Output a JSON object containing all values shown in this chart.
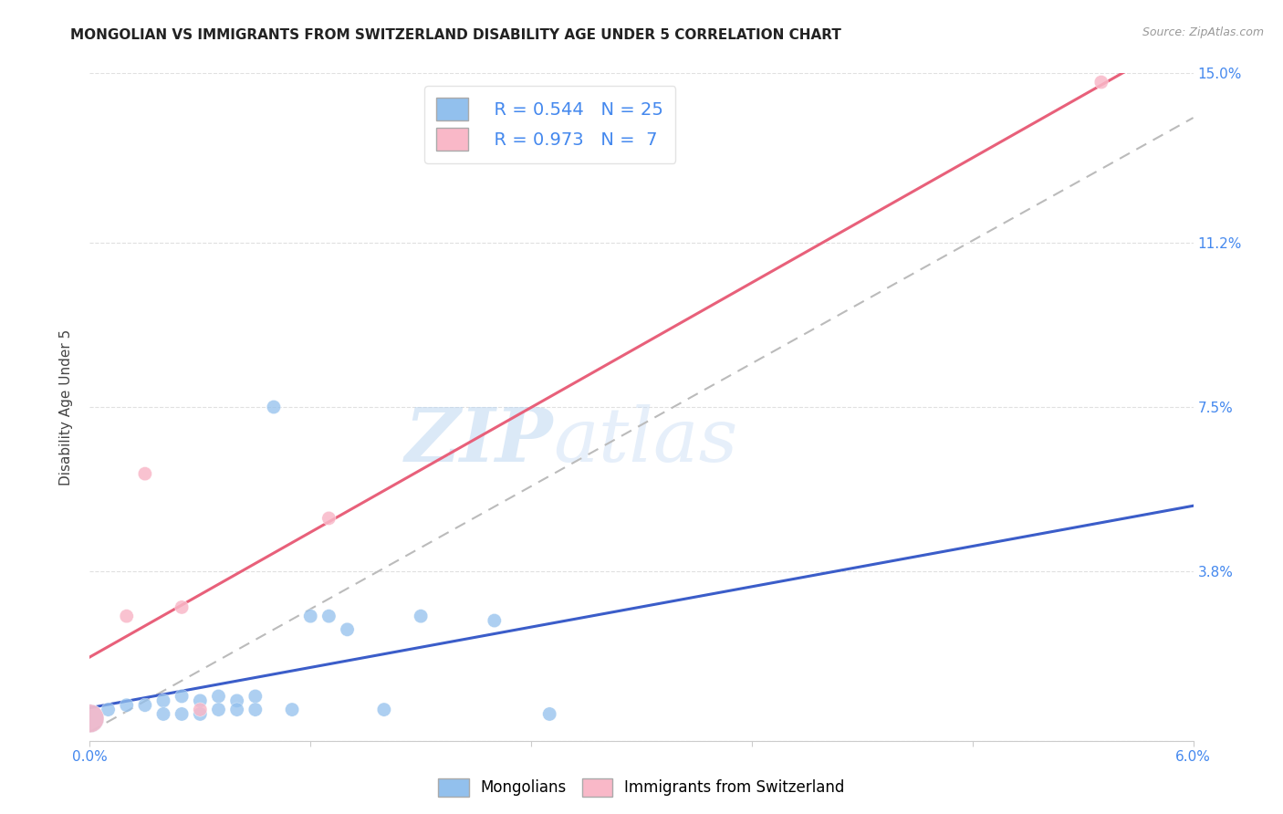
{
  "title": "MONGOLIAN VS IMMIGRANTS FROM SWITZERLAND DISABILITY AGE UNDER 5 CORRELATION CHART",
  "source": "Source: ZipAtlas.com",
  "ylabel": "Disability Age Under 5",
  "xlabel": "",
  "xlim": [
    0.0,
    0.06
  ],
  "ylim": [
    0.0,
    0.15
  ],
  "xticks": [
    0.0,
    0.012,
    0.024,
    0.036,
    0.048,
    0.06
  ],
  "xtick_labels": [
    "0.0%",
    "",
    "",
    "",
    "",
    "6.0%"
  ],
  "ytick_labels": [
    "15.0%",
    "11.2%",
    "7.5%",
    "3.8%",
    ""
  ],
  "ytick_positions": [
    0.15,
    0.112,
    0.075,
    0.038,
    0.0
  ],
  "watermark_zip": "ZIP",
  "watermark_atlas": "atlas",
  "legend_blue_r": "R = 0.544",
  "legend_blue_n": "N = 25",
  "legend_pink_r": "R = 0.973",
  "legend_pink_n": "N =  7",
  "blue_color": "#92C0ED",
  "pink_color": "#F9B8C8",
  "blue_line_color": "#3B5DC9",
  "pink_line_color": "#E8607A",
  "dashed_line_color": "#BBBBBB",
  "mongolian_x": [
    0.0,
    0.001,
    0.002,
    0.003,
    0.004,
    0.004,
    0.005,
    0.005,
    0.006,
    0.006,
    0.007,
    0.007,
    0.008,
    0.008,
    0.009,
    0.009,
    0.01,
    0.011,
    0.012,
    0.013,
    0.014,
    0.016,
    0.018,
    0.022,
    0.025
  ],
  "mongolian_y": [
    0.005,
    0.007,
    0.008,
    0.008,
    0.009,
    0.006,
    0.01,
    0.006,
    0.009,
    0.006,
    0.01,
    0.007,
    0.009,
    0.007,
    0.01,
    0.007,
    0.075,
    0.007,
    0.028,
    0.028,
    0.025,
    0.007,
    0.028,
    0.027,
    0.006
  ],
  "mongolian_sizes": [
    500,
    120,
    120,
    120,
    120,
    120,
    120,
    120,
    120,
    120,
    120,
    120,
    120,
    120,
    120,
    120,
    120,
    120,
    120,
    120,
    120,
    120,
    120,
    120,
    120
  ],
  "swiss_x": [
    0.0,
    0.002,
    0.003,
    0.005,
    0.006,
    0.013,
    0.055
  ],
  "swiss_y": [
    0.005,
    0.028,
    0.06,
    0.03,
    0.007,
    0.05,
    0.148
  ],
  "swiss_sizes": [
    500,
    120,
    120,
    120,
    120,
    120,
    120
  ],
  "grid_color": "#E0E0E0",
  "background_color": "#FFFFFF",
  "title_fontsize": 11,
  "axis_label_fontsize": 11,
  "tick_fontsize": 11,
  "tick_color": "#4488EE"
}
